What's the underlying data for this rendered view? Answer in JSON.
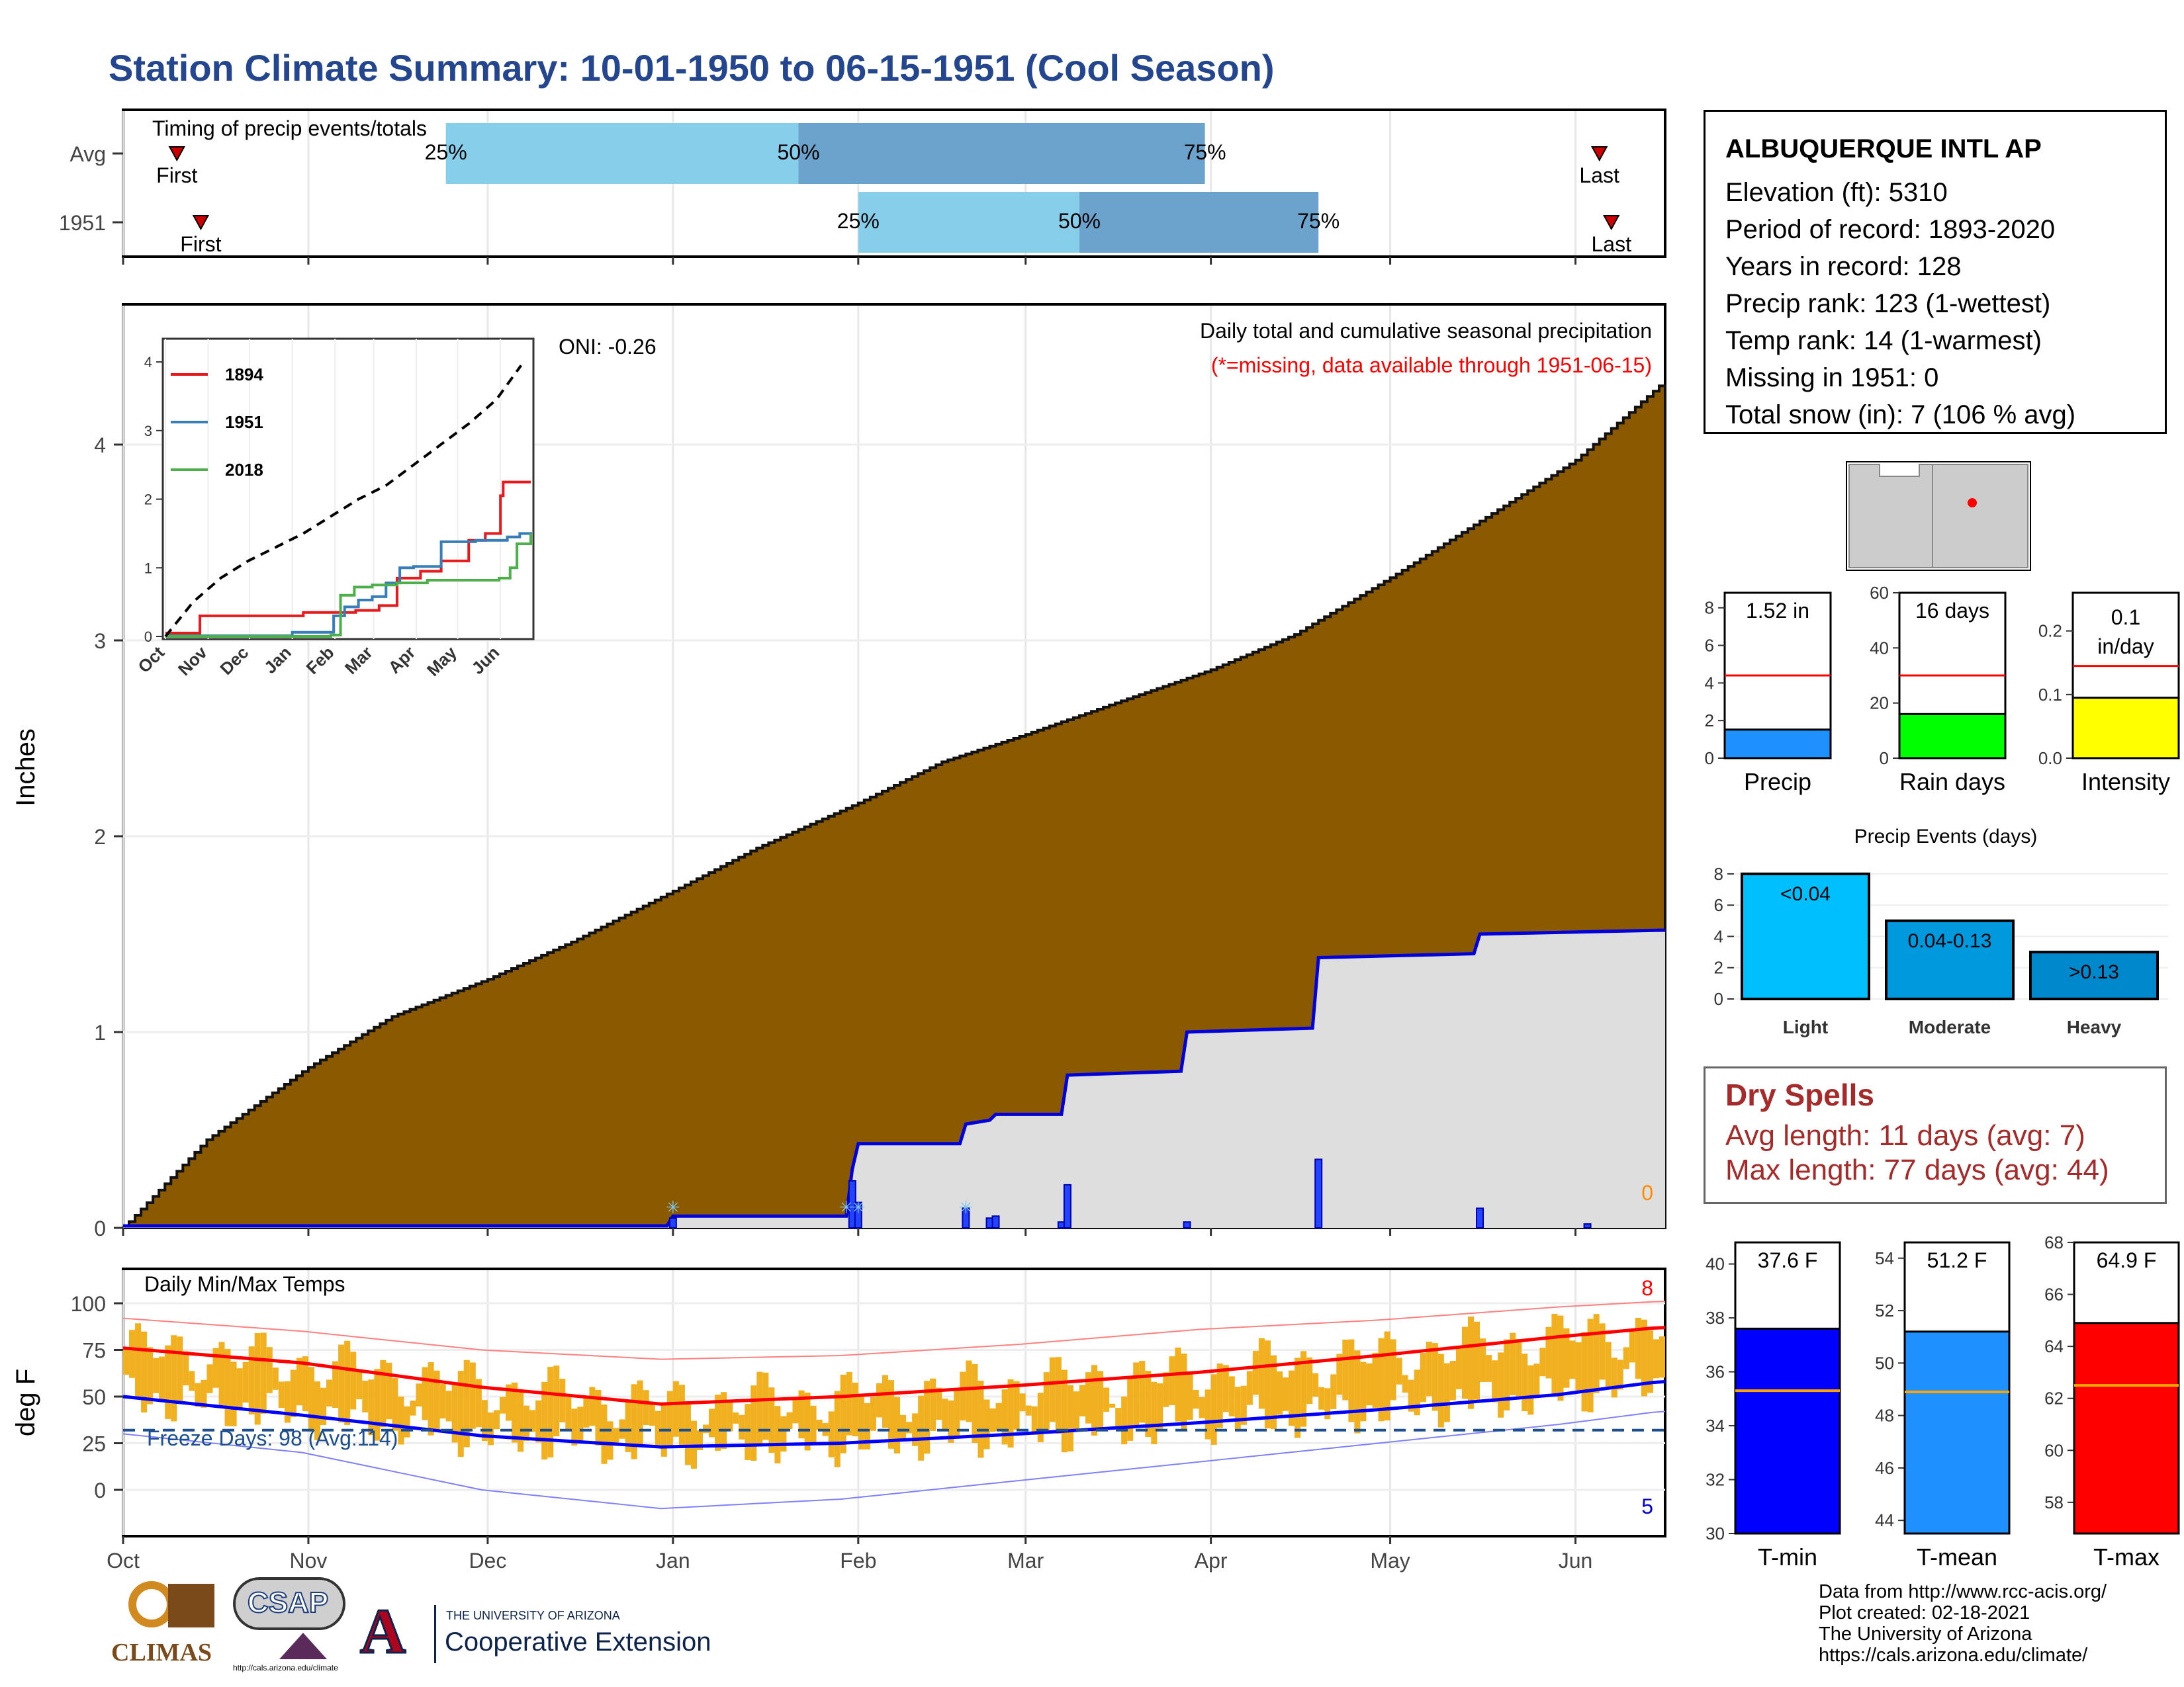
{
  "page": {
    "title": "Station Climate Summary: 10-01-1950 to 06-15-1951 (Cool Season)"
  },
  "station": {
    "name": "ALBUQUERQUE INTL AP",
    "lines": [
      "Elevation (ft): 5310",
      "Period of record: 1893-2020",
      "Years in record: 128",
      "Precip rank: 123 (1-wettest)",
      "Temp rank: 14 (1-warmest)",
      "Missing in 1951: 0",
      "Total snow (in): 7 (106 % avg)"
    ]
  },
  "dry_spells": {
    "title": "Dry Spells",
    "avg_length": "Avg length: 11 days (avg: 7)",
    "max_length": "Max length: 77 days (avg: 44)"
  },
  "credits": {
    "lines": [
      "Data from http://www.rcc-acis.org/",
      "Plot created: 02-18-2021",
      "The University of Arizona",
      "https://cals.arizona.edu/climate/"
    ]
  },
  "logos": {
    "climas": "CLIMAS",
    "csap": "CSAP",
    "csap_url": "http://cals.arizona.edu/climate",
    "ua_small": "THE UNIVERSITY OF ARIZONA",
    "ua_big": "Cooperative Extension"
  },
  "colors": {
    "title": "#24468f",
    "cumulative_avg": "#8b5a00",
    "cumulative_1951": "#dedede",
    "daily_precip": "#0000cc",
    "temp_bars": "#f0b020",
    "tmax_avg": "#ff0000",
    "tmin_avg": "#0000ff"
  },
  "chart_data": [
    {
      "id": "timing",
      "type": "bar",
      "title": "Timing of precip events/totals",
      "rows": [
        {
          "label": "Avg",
          "first": "Oct 10",
          "q25": "Nov 24",
          "q50": "Jan 22",
          "q75": "Mar 31",
          "last": "Jun 5"
        },
        {
          "label": "1951",
          "first": "Oct 14",
          "q25": "Feb 1",
          "q50": "Mar 10",
          "q75": "Apr 19",
          "last": "Jun 7"
        }
      ],
      "marker_labels": [
        "First",
        "Last"
      ],
      "quantile_labels": [
        "25%",
        "50%",
        "75%"
      ]
    },
    {
      "id": "precip",
      "type": "area",
      "ylabel": "Inches",
      "title": "Daily total and cumulative seasonal precipitation",
      "subtitle": "(*=missing, data available through 1951-06-15)",
      "oni": "ONI: -0.26",
      "missing_count": "0",
      "ylim": [
        0,
        4.7
      ],
      "yticks": [
        "0",
        "1",
        "2",
        "3",
        "4"
      ],
      "xticks": [
        "Oct",
        "Nov",
        "Dec",
        "Jan",
        "Feb",
        "Mar",
        "Apr",
        "May",
        "Jun"
      ],
      "avg_cumulative": {
        "date": [
          "Oct 1",
          "Oct 15",
          "Nov 1",
          "Nov 15",
          "Dec 1",
          "Dec 15",
          "Jan 1",
          "Jan 15",
          "Feb 1",
          "Feb 15",
          "Mar 1",
          "Mar 15",
          "Apr 1",
          "Apr 15",
          "May 1",
          "May 15",
          "Jun 1",
          "Jun 15"
        ],
        "value": [
          0,
          0.45,
          0.82,
          1.08,
          1.27,
          1.46,
          1.72,
          1.94,
          2.17,
          2.38,
          2.52,
          2.67,
          2.85,
          3.03,
          3.32,
          3.59,
          3.92,
          4.3
        ]
      },
      "cumulative_1951": {
        "date": [
          "Oct 1",
          "Dec 31",
          "Jan 1",
          "Jan 30",
          "Jan 31",
          "Feb 1",
          "Feb 18",
          "Feb 19",
          "Feb 23",
          "Feb 24",
          "Mar 7",
          "Mar 8",
          "Mar 27",
          "Mar 28",
          "Apr 18",
          "Apr 19",
          "May 15",
          "May 16",
          "Jun 15"
        ],
        "value": [
          0.01,
          0.01,
          0.06,
          0.06,
          0.3,
          0.43,
          0.43,
          0.53,
          0.55,
          0.58,
          0.58,
          0.78,
          0.8,
          1.0,
          1.02,
          1.38,
          1.4,
          1.5,
          1.52
        ]
      },
      "daily_1951": {
        "date": [
          "Jan 1",
          "Jan 31",
          "Feb 1",
          "Feb 19",
          "Feb 23",
          "Feb 24",
          "Mar 7",
          "Mar 8",
          "Mar 28",
          "Apr 19",
          "May 16",
          "Jun 3"
        ],
        "value": [
          0.05,
          0.24,
          0.13,
          0.1,
          0.05,
          0.06,
          0.03,
          0.22,
          0.03,
          0.35,
          0.1,
          0.02
        ]
      },
      "snow_markers": [
        "Jan 1",
        "Jan 30",
        "Feb 1",
        "Feb 19"
      ]
    },
    {
      "id": "inset",
      "type": "line",
      "ylim": [
        0,
        4.3
      ],
      "yticks": [
        "0",
        "1",
        "2",
        "3",
        "4"
      ],
      "xticks": [
        "Oct",
        "Nov",
        "Dec",
        "Jan",
        "Feb",
        "Mar",
        "Apr",
        "May",
        "Jun"
      ],
      "series": [
        {
          "name": "1894",
          "color": "#e41a1c",
          "x": [
            0,
            25,
            100,
            138,
            155,
            168,
            185,
            200,
            220,
            232,
            243,
            245,
            265
          ],
          "values": [
            0.05,
            0.3,
            0.35,
            0.38,
            0.45,
            0.85,
            0.95,
            1.1,
            1.4,
            1.5,
            2.05,
            2.25,
            2.25
          ]
        },
        {
          "name": "1951",
          "color": "#377eb8",
          "x": [
            0,
            92,
            122,
            130,
            140,
            150,
            160,
            170,
            180,
            200,
            225,
            248,
            257,
            265
          ],
          "values": [
            0.01,
            0.06,
            0.3,
            0.43,
            0.53,
            0.58,
            0.78,
            1.0,
            1.02,
            1.38,
            1.4,
            1.45,
            1.5,
            1.52
          ]
        },
        {
          "name": "2018",
          "color": "#4daf4a",
          "x": [
            0,
            120,
            127,
            137,
            150,
            168,
            190,
            242,
            250,
            255,
            265
          ],
          "values": [
            0.0,
            0.02,
            0.6,
            0.72,
            0.75,
            0.78,
            0.82,
            0.85,
            1.0,
            1.35,
            1.5
          ]
        },
        {
          "name": "Avg",
          "color": "#000000",
          "dash": true,
          "x": [
            0,
            20,
            40,
            60,
            80,
            100,
            120,
            140,
            160,
            180,
            200,
            220,
            240,
            258
          ],
          "values": [
            0,
            0.5,
            0.85,
            1.1,
            1.3,
            1.5,
            1.75,
            2.0,
            2.2,
            2.5,
            2.8,
            3.1,
            3.45,
            3.95
          ]
        }
      ]
    },
    {
      "id": "temps",
      "type": "bar",
      "title": "Daily Min/Max Temps",
      "ylabel": "deg F",
      "ylim": [
        -20,
        103
      ],
      "yticks": [
        "0",
        "25",
        "50",
        "75",
        "100"
      ],
      "xticks": [
        "Oct",
        "Nov",
        "Dec",
        "Jan",
        "Feb",
        "Mar",
        "Apr",
        "May",
        "Jun"
      ],
      "freeze_label": "Freeze Days: 98 (Avg:114)",
      "freeze_line": 32,
      "record_high_count": "8",
      "record_low_count": "5",
      "avg_max": {
        "day": [
          0,
          30,
          60,
          90,
          120,
          150,
          180,
          210,
          240,
          257
        ],
        "value": [
          76,
          68,
          55,
          46,
          50,
          56,
          63,
          72,
          82,
          87
        ]
      },
      "avg_min": {
        "day": [
          0,
          30,
          60,
          90,
          120,
          150,
          180,
          210,
          240,
          257
        ],
        "value": [
          50,
          40,
          29,
          23,
          25,
          30,
          36,
          43,
          51,
          58
        ]
      },
      "extreme_max": {
        "day": [
          0,
          30,
          60,
          90,
          120,
          150,
          180,
          210,
          240,
          257
        ],
        "value": [
          92,
          85,
          75,
          70,
          72,
          78,
          86,
          91,
          98,
          101
        ]
      },
      "extreme_min": {
        "day": [
          0,
          30,
          60,
          90,
          120,
          150,
          180,
          210,
          240,
          257
        ],
        "value": [
          30,
          20,
          0,
          -10,
          -5,
          5,
          15,
          25,
          35,
          42
        ]
      }
    },
    {
      "id": "precip_total",
      "type": "bar",
      "xlabel": "Precip",
      "value_label": "1.52 in",
      "value": 1.52,
      "avg": 4.4,
      "ylim": [
        0,
        8.8
      ],
      "yticks": [
        "0",
        "2",
        "4",
        "6",
        "8"
      ],
      "color": "#1e90ff"
    },
    {
      "id": "rain_days",
      "type": "bar",
      "xlabel": "Rain days",
      "value_label": "16 days",
      "value": 16,
      "avg": 30,
      "ylim": [
        0,
        60
      ],
      "yticks": [
        "0",
        "20",
        "40",
        "60"
      ],
      "color": "#00ff00"
    },
    {
      "id": "intensity",
      "type": "bar",
      "xlabel": "Intensity",
      "value_label": "0.1",
      "value_label2": "in/day",
      "value": 0.095,
      "avg": 0.145,
      "ylim": [
        0,
        0.26
      ],
      "yticks": [
        "0.0",
        "0.1",
        "0.2"
      ],
      "color": "#ffff00"
    },
    {
      "id": "events",
      "type": "bar",
      "title": "Precip Events (days)",
      "categories": [
        "Light",
        "Moderate",
        "Heavy"
      ],
      "value_labels": [
        "<0.04",
        "0.04-0.13",
        ">0.13"
      ],
      "values": [
        8,
        5,
        3
      ],
      "ylim": [
        0,
        8.8
      ],
      "yticks": [
        "0",
        "2",
        "4",
        "6",
        "8"
      ],
      "colors": [
        "#00bfff",
        "#0099dd",
        "#0088cc"
      ]
    },
    {
      "id": "tmin",
      "type": "bar",
      "xlabel": "T-min",
      "value_label": "37.6 F",
      "value": 37.6,
      "avg": 35.3,
      "ylim": [
        30,
        40.8
      ],
      "yticks": [
        "30",
        "32",
        "34",
        "36",
        "38",
        "40"
      ],
      "color": "#0000ff"
    },
    {
      "id": "tmean",
      "type": "bar",
      "xlabel": "T-mean",
      "value_label": "51.2 F",
      "value": 51.2,
      "avg": 48.9,
      "ylim": [
        43.5,
        54.6
      ],
      "yticks": [
        "44",
        "46",
        "48",
        "50",
        "52",
        "54"
      ],
      "color": "#1e90ff"
    },
    {
      "id": "tmax",
      "type": "bar",
      "xlabel": "T-max",
      "value_label": "64.9 F",
      "value": 64.9,
      "avg": 62.5,
      "ylim": [
        56.8,
        68
      ],
      "yticks": [
        "58",
        "60",
        "62",
        "64",
        "66",
        "68"
      ],
      "color": "#ff0000"
    }
  ]
}
